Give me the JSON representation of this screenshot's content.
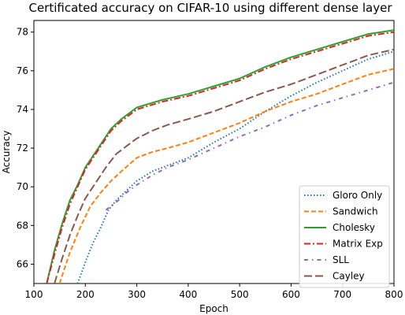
{
  "chart_data": {
    "type": "line",
    "title": "Certificated accuracy on CIFAR-10 using different dense layer",
    "xlabel": "Epoch",
    "ylabel": "Accuracy",
    "xlim": [
      100,
      800
    ],
    "ylim": [
      65,
      78.6
    ],
    "x_ticks": [
      100,
      200,
      300,
      400,
      500,
      600,
      700,
      800
    ],
    "y_ticks": [
      66,
      68,
      70,
      72,
      74,
      76,
      78
    ],
    "grid": false,
    "legend_position": "bottom-right",
    "series": [
      {
        "name": "Gloro Only",
        "color": "#1f77b4",
        "dash": "dotted",
        "points": [
          [
            185,
            65.0
          ],
          [
            200,
            66.1
          ],
          [
            215,
            67.1
          ],
          [
            230,
            67.9
          ],
          [
            245,
            68.8
          ],
          [
            260,
            69.3
          ],
          [
            280,
            69.8
          ],
          [
            300,
            70.3
          ],
          [
            330,
            70.8
          ],
          [
            360,
            71.1
          ],
          [
            400,
            71.5
          ],
          [
            450,
            72.3
          ],
          [
            500,
            73.0
          ],
          [
            550,
            73.9
          ],
          [
            600,
            74.7
          ],
          [
            650,
            75.4
          ],
          [
            700,
            76.0
          ],
          [
            750,
            76.6
          ],
          [
            800,
            77.0
          ]
        ]
      },
      {
        "name": "Sandwich",
        "color": "#ff7f0e",
        "dash": "dashed",
        "points": [
          [
            150,
            65.0
          ],
          [
            170,
            66.6
          ],
          [
            190,
            67.9
          ],
          [
            210,
            69.0
          ],
          [
            230,
            69.7
          ],
          [
            250,
            70.3
          ],
          [
            270,
            70.8
          ],
          [
            300,
            71.5
          ],
          [
            330,
            71.8
          ],
          [
            360,
            72.0
          ],
          [
            400,
            72.3
          ],
          [
            450,
            72.8
          ],
          [
            500,
            73.3
          ],
          [
            550,
            73.9
          ],
          [
            600,
            74.4
          ],
          [
            650,
            74.8
          ],
          [
            700,
            75.3
          ],
          [
            750,
            75.8
          ],
          [
            800,
            76.1
          ]
        ]
      },
      {
        "name": "Cholesky",
        "color": "#2ca02c",
        "dash": "solid",
        "points": [
          [
            125,
            65.0
          ],
          [
            140,
            66.7
          ],
          [
            155,
            68.1
          ],
          [
            170,
            69.3
          ],
          [
            185,
            70.1
          ],
          [
            200,
            71.0
          ],
          [
            215,
            71.6
          ],
          [
            230,
            72.2
          ],
          [
            250,
            73.0
          ],
          [
            270,
            73.5
          ],
          [
            300,
            74.1
          ],
          [
            350,
            74.5
          ],
          [
            400,
            74.8
          ],
          [
            450,
            75.2
          ],
          [
            500,
            75.6
          ],
          [
            550,
            76.2
          ],
          [
            600,
            76.7
          ],
          [
            650,
            77.1
          ],
          [
            700,
            77.5
          ],
          [
            750,
            77.9
          ],
          [
            800,
            78.1
          ]
        ]
      },
      {
        "name": "Matrix Exp",
        "color": "#d62728",
        "dash": "dashdot",
        "points": [
          [
            125,
            65.0
          ],
          [
            140,
            66.5
          ],
          [
            155,
            67.9
          ],
          [
            170,
            69.1
          ],
          [
            185,
            70.0
          ],
          [
            200,
            70.9
          ],
          [
            215,
            71.5
          ],
          [
            230,
            72.1
          ],
          [
            250,
            72.9
          ],
          [
            270,
            73.4
          ],
          [
            300,
            74.0
          ],
          [
            350,
            74.4
          ],
          [
            400,
            74.7
          ],
          [
            450,
            75.1
          ],
          [
            500,
            75.5
          ],
          [
            550,
            76.1
          ],
          [
            600,
            76.6
          ],
          [
            650,
            77.0
          ],
          [
            700,
            77.4
          ],
          [
            750,
            77.8
          ],
          [
            800,
            78.0
          ]
        ]
      },
      {
        "name": "SLL",
        "color": "#9467bd",
        "dash": "dashdot2",
        "points": [
          [
            240,
            68.8
          ],
          [
            260,
            69.2
          ],
          [
            280,
            69.7
          ],
          [
            300,
            70.1
          ],
          [
            330,
            70.6
          ],
          [
            360,
            71.0
          ],
          [
            400,
            71.4
          ],
          [
            450,
            72.0
          ],
          [
            500,
            72.6
          ],
          [
            550,
            73.1
          ],
          [
            600,
            73.7
          ],
          [
            650,
            74.2
          ],
          [
            700,
            74.6
          ],
          [
            750,
            75.0
          ],
          [
            800,
            75.4
          ]
        ]
      },
      {
        "name": "Cayley",
        "color": "#8c564b",
        "dash": "longdash",
        "points": [
          [
            140,
            65.0
          ],
          [
            155,
            66.3
          ],
          [
            170,
            67.5
          ],
          [
            185,
            68.5
          ],
          [
            200,
            69.4
          ],
          [
            220,
            70.2
          ],
          [
            240,
            71.0
          ],
          [
            260,
            71.7
          ],
          [
            280,
            72.1
          ],
          [
            300,
            72.5
          ],
          [
            330,
            72.9
          ],
          [
            360,
            73.2
          ],
          [
            400,
            73.5
          ],
          [
            450,
            73.9
          ],
          [
            500,
            74.4
          ],
          [
            550,
            74.9
          ],
          [
            600,
            75.3
          ],
          [
            650,
            75.8
          ],
          [
            700,
            76.3
          ],
          [
            750,
            76.8
          ],
          [
            800,
            77.1
          ]
        ]
      }
    ]
  }
}
